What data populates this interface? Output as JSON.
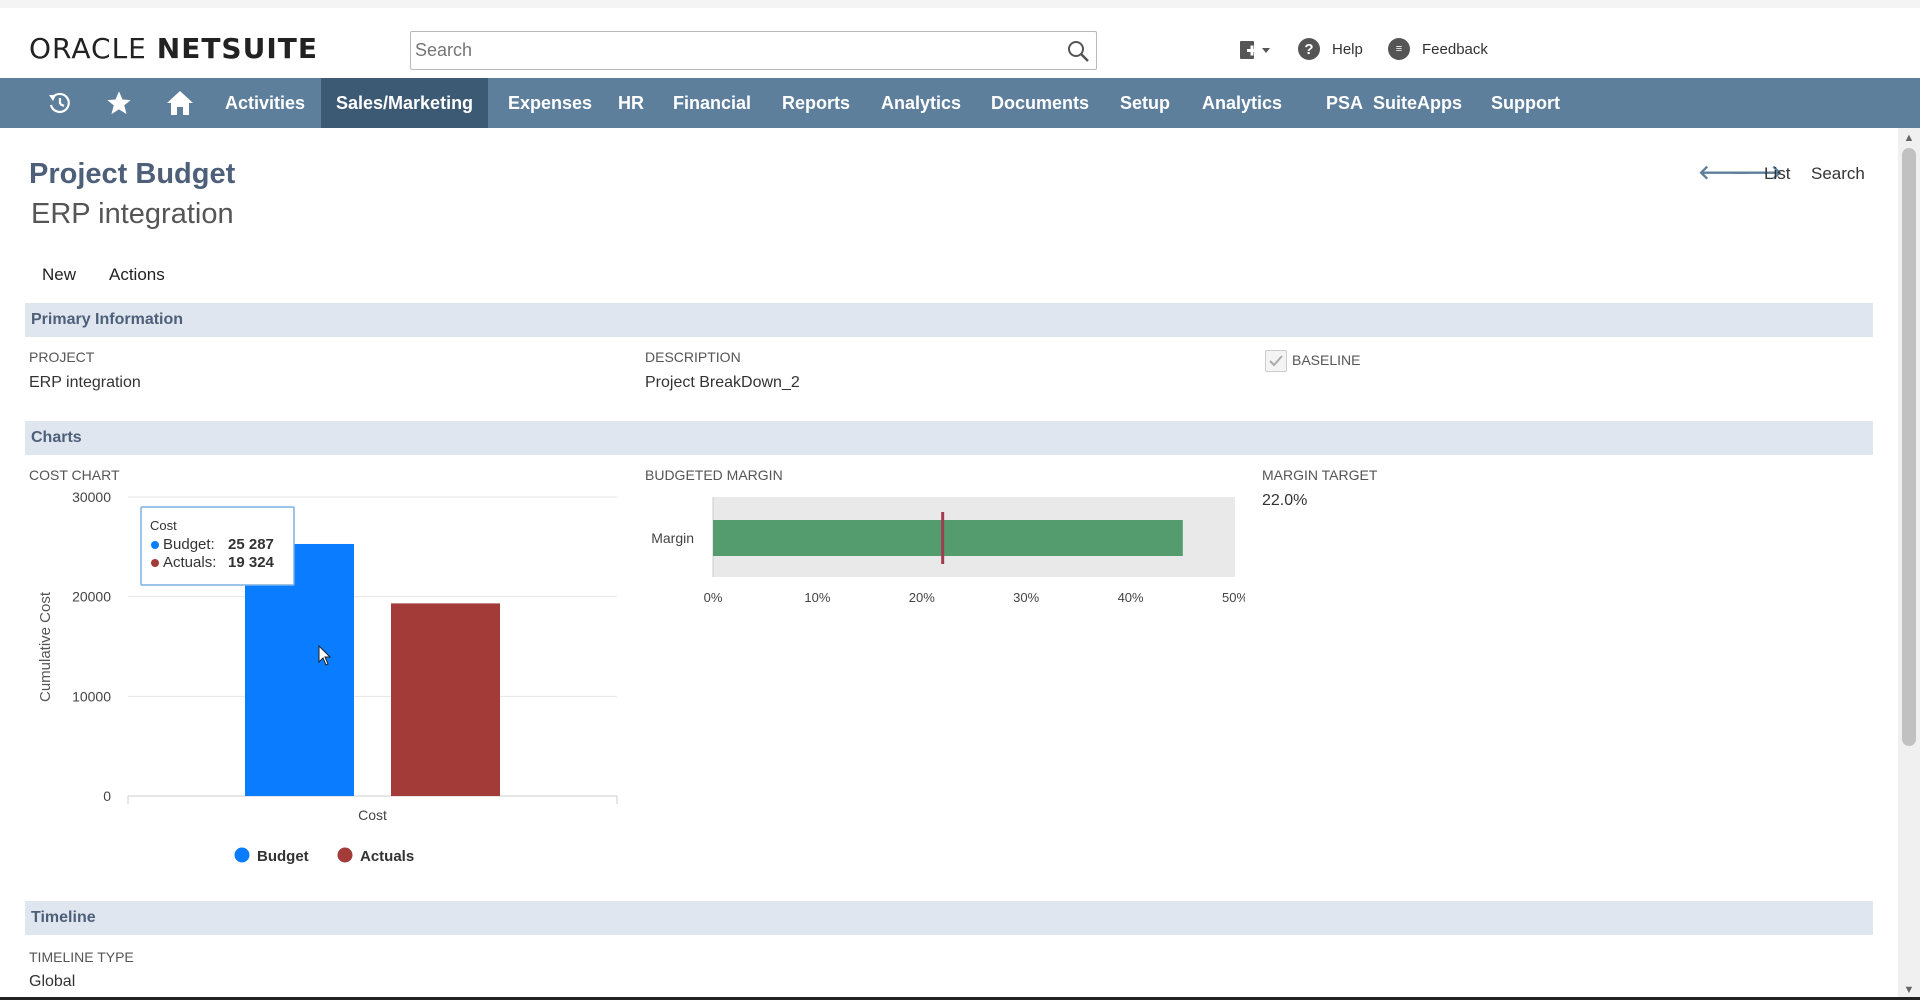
{
  "header": {
    "logo_text": "ORACLE NETSUITE",
    "search_placeholder": "Search",
    "help_label": "Help",
    "feedback_label": "Feedback"
  },
  "nav": {
    "items": [
      "Activities",
      "Sales/Marketing",
      "Expenses",
      "HR",
      "Financial",
      "Reports",
      "Analytics",
      "Documents",
      "Setup",
      "Analytics",
      "PSA",
      "SuiteApps",
      "Support"
    ],
    "active": "Sales/Marketing"
  },
  "page": {
    "title": "Project Budget",
    "subtitle": "ERP integration",
    "list_label": "List",
    "search_label": "Search",
    "new_label": "New",
    "actions_label": "Actions"
  },
  "primary": {
    "section_title": "Primary Information",
    "project_label": "PROJECT",
    "project_value": "ERP integration",
    "description_label": "DESCRIPTION",
    "description_value": "Project BreakDown_2",
    "baseline_label": "BASELINE",
    "baseline_checked": true
  },
  "charts": {
    "section_title": "Charts",
    "cost_chart_label": "COST CHART",
    "budgeted_margin_label": "BUDGETED MARGIN",
    "margin_target_label": "MARGIN TARGET",
    "margin_target_value": "22.0%"
  },
  "timeline": {
    "section_title": "Timeline",
    "type_label": "TIMELINE TYPE",
    "type_value": "Global"
  },
  "colors": {
    "budget": "#0a7cff",
    "actuals": "#a33b38",
    "margin_bar": "#549b6e",
    "target_line": "#a33b50",
    "nav_bg": "#5e7f9c",
    "nav_active": "#3d5a75"
  },
  "chart_data": [
    {
      "type": "bar",
      "categories": [
        "Cost"
      ],
      "series": [
        {
          "name": "Budget",
          "values": [
            25287
          ]
        },
        {
          "name": "Actuals",
          "values": [
            19324
          ]
        }
      ],
      "ylabel": "Cumulative Cost",
      "ylim": [
        0,
        30000
      ],
      "yticks": [
        0,
        10000,
        20000,
        30000
      ],
      "legend": "bottom",
      "tooltip": {
        "title": "Cost",
        "lines": [
          {
            "label": "Budget",
            "value": "25 287"
          },
          {
            "label": "Actuals",
            "value": "19 324"
          }
        ]
      }
    },
    {
      "type": "bar",
      "orientation": "horizontal",
      "categories": [
        "Margin"
      ],
      "values": [
        45
      ],
      "target": 22,
      "xlim": [
        0,
        50
      ],
      "xticks": [
        "0%",
        "10%",
        "20%",
        "30%",
        "40%",
        "50%"
      ]
    }
  ]
}
